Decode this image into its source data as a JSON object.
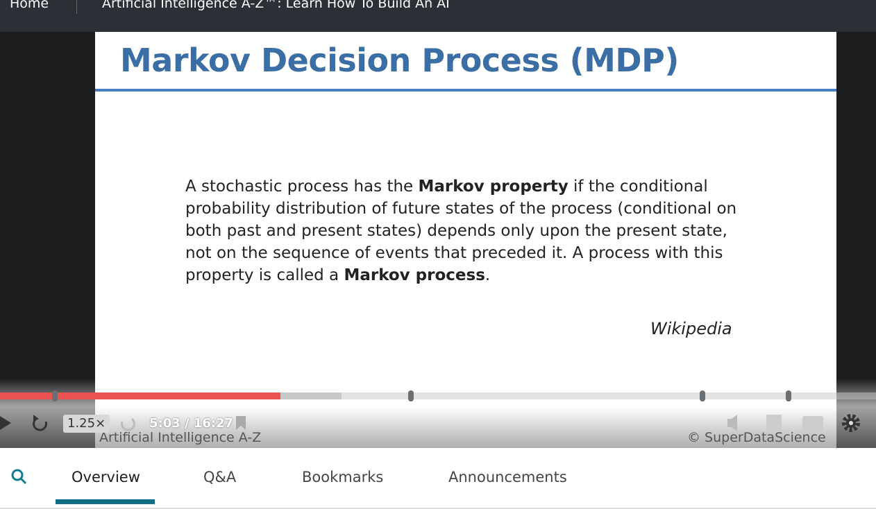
{
  "header": {
    "home": "Home",
    "course_title": "Artificial Intelligence A-Z™: Learn How To Build An AI"
  },
  "slide": {
    "title": "Markov Decision Process (MDP)",
    "paragraph": [
      "A stochastic process has the ",
      "Markov property",
      " if the conditional probability distribution of future states of the process (conditional on both past and present states) depends only upon the present state, not on the sequence of events that preceded it. A process with this property is called a ",
      "Markov process",
      "."
    ],
    "source": "Wikipedia",
    "footer_left": "Artificial Intelligence A-Z",
    "footer_right": "© SuperDataScience"
  },
  "player": {
    "speed": "1.25×",
    "time": "5:03 / 16:27"
  },
  "tabs": [
    "Overview",
    "Q&A",
    "Bookmarks",
    "Announcements"
  ]
}
